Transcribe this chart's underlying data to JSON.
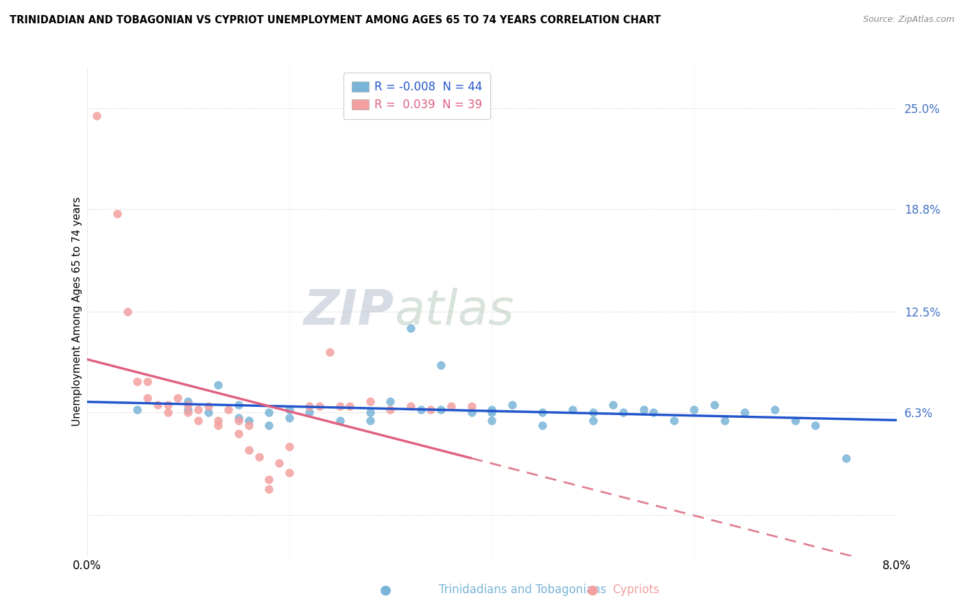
{
  "title": "TRINIDADIAN AND TOBAGONIAN VS CYPRIOT UNEMPLOYMENT AMONG AGES 65 TO 74 YEARS CORRELATION CHART",
  "source": "Source: ZipAtlas.com",
  "ylabel": "Unemployment Among Ages 65 to 74 years",
  "xlim": [
    0.0,
    0.08
  ],
  "ylim": [
    -0.025,
    0.275
  ],
  "ytick_vals": [
    0.0,
    0.063,
    0.125,
    0.188,
    0.25
  ],
  "ytick_labels": [
    "",
    "6.3%",
    "12.5%",
    "18.8%",
    "25.0%"
  ],
  "xtick_vals": [
    0.0,
    0.02,
    0.04,
    0.06,
    0.08
  ],
  "xtick_labels": [
    "0.0%",
    "",
    "",
    "",
    "8.0%"
  ],
  "blue_color": "#7ab4d8",
  "pink_color": "#f4a0a0",
  "blue_scatter_x": [
    0.005,
    0.01,
    0.01,
    0.012,
    0.013,
    0.015,
    0.015,
    0.016,
    0.018,
    0.018,
    0.02,
    0.02,
    0.022,
    0.025,
    0.028,
    0.028,
    0.03,
    0.032,
    0.033,
    0.035,
    0.035,
    0.038,
    0.04,
    0.04,
    0.04,
    0.042,
    0.045,
    0.045,
    0.048,
    0.05,
    0.05,
    0.052,
    0.053,
    0.055,
    0.056,
    0.058,
    0.06,
    0.062,
    0.063,
    0.065,
    0.068,
    0.07,
    0.072,
    0.075
  ],
  "blue_scatter_y": [
    0.065,
    0.065,
    0.07,
    0.063,
    0.08,
    0.068,
    0.06,
    0.058,
    0.063,
    0.055,
    0.065,
    0.06,
    0.063,
    0.058,
    0.063,
    0.058,
    0.07,
    0.115,
    0.065,
    0.092,
    0.065,
    0.063,
    0.065,
    0.058,
    0.063,
    0.068,
    0.055,
    0.063,
    0.065,
    0.063,
    0.058,
    0.068,
    0.063,
    0.065,
    0.063,
    0.058,
    0.065,
    0.068,
    0.058,
    0.063,
    0.065,
    0.058,
    0.055,
    0.035
  ],
  "pink_scatter_x": [
    0.001,
    0.003,
    0.004,
    0.005,
    0.006,
    0.006,
    0.007,
    0.008,
    0.008,
    0.009,
    0.01,
    0.01,
    0.011,
    0.011,
    0.012,
    0.013,
    0.013,
    0.014,
    0.015,
    0.015,
    0.016,
    0.016,
    0.017,
    0.018,
    0.018,
    0.019,
    0.02,
    0.02,
    0.022,
    0.023,
    0.024,
    0.025,
    0.026,
    0.028,
    0.03,
    0.032,
    0.034,
    0.036,
    0.038
  ],
  "pink_scatter_y": [
    0.245,
    0.185,
    0.125,
    0.082,
    0.082,
    0.072,
    0.068,
    0.068,
    0.063,
    0.072,
    0.068,
    0.063,
    0.065,
    0.058,
    0.067,
    0.058,
    0.055,
    0.065,
    0.058,
    0.05,
    0.055,
    0.04,
    0.036,
    0.022,
    0.016,
    0.032,
    0.042,
    0.026,
    0.067,
    0.067,
    0.1,
    0.067,
    0.067,
    0.07,
    0.065,
    0.067,
    0.065,
    0.067,
    0.067
  ],
  "legend_label_blue": "R = -0.008  N = 44",
  "legend_label_pink": "R =  0.039  N = 39",
  "bottom_label_blue": "Trinidadians and Tobagonians",
  "bottom_label_pink": "Cypriots",
  "watermark_zip": "ZIP",
  "watermark_atlas": "atlas"
}
